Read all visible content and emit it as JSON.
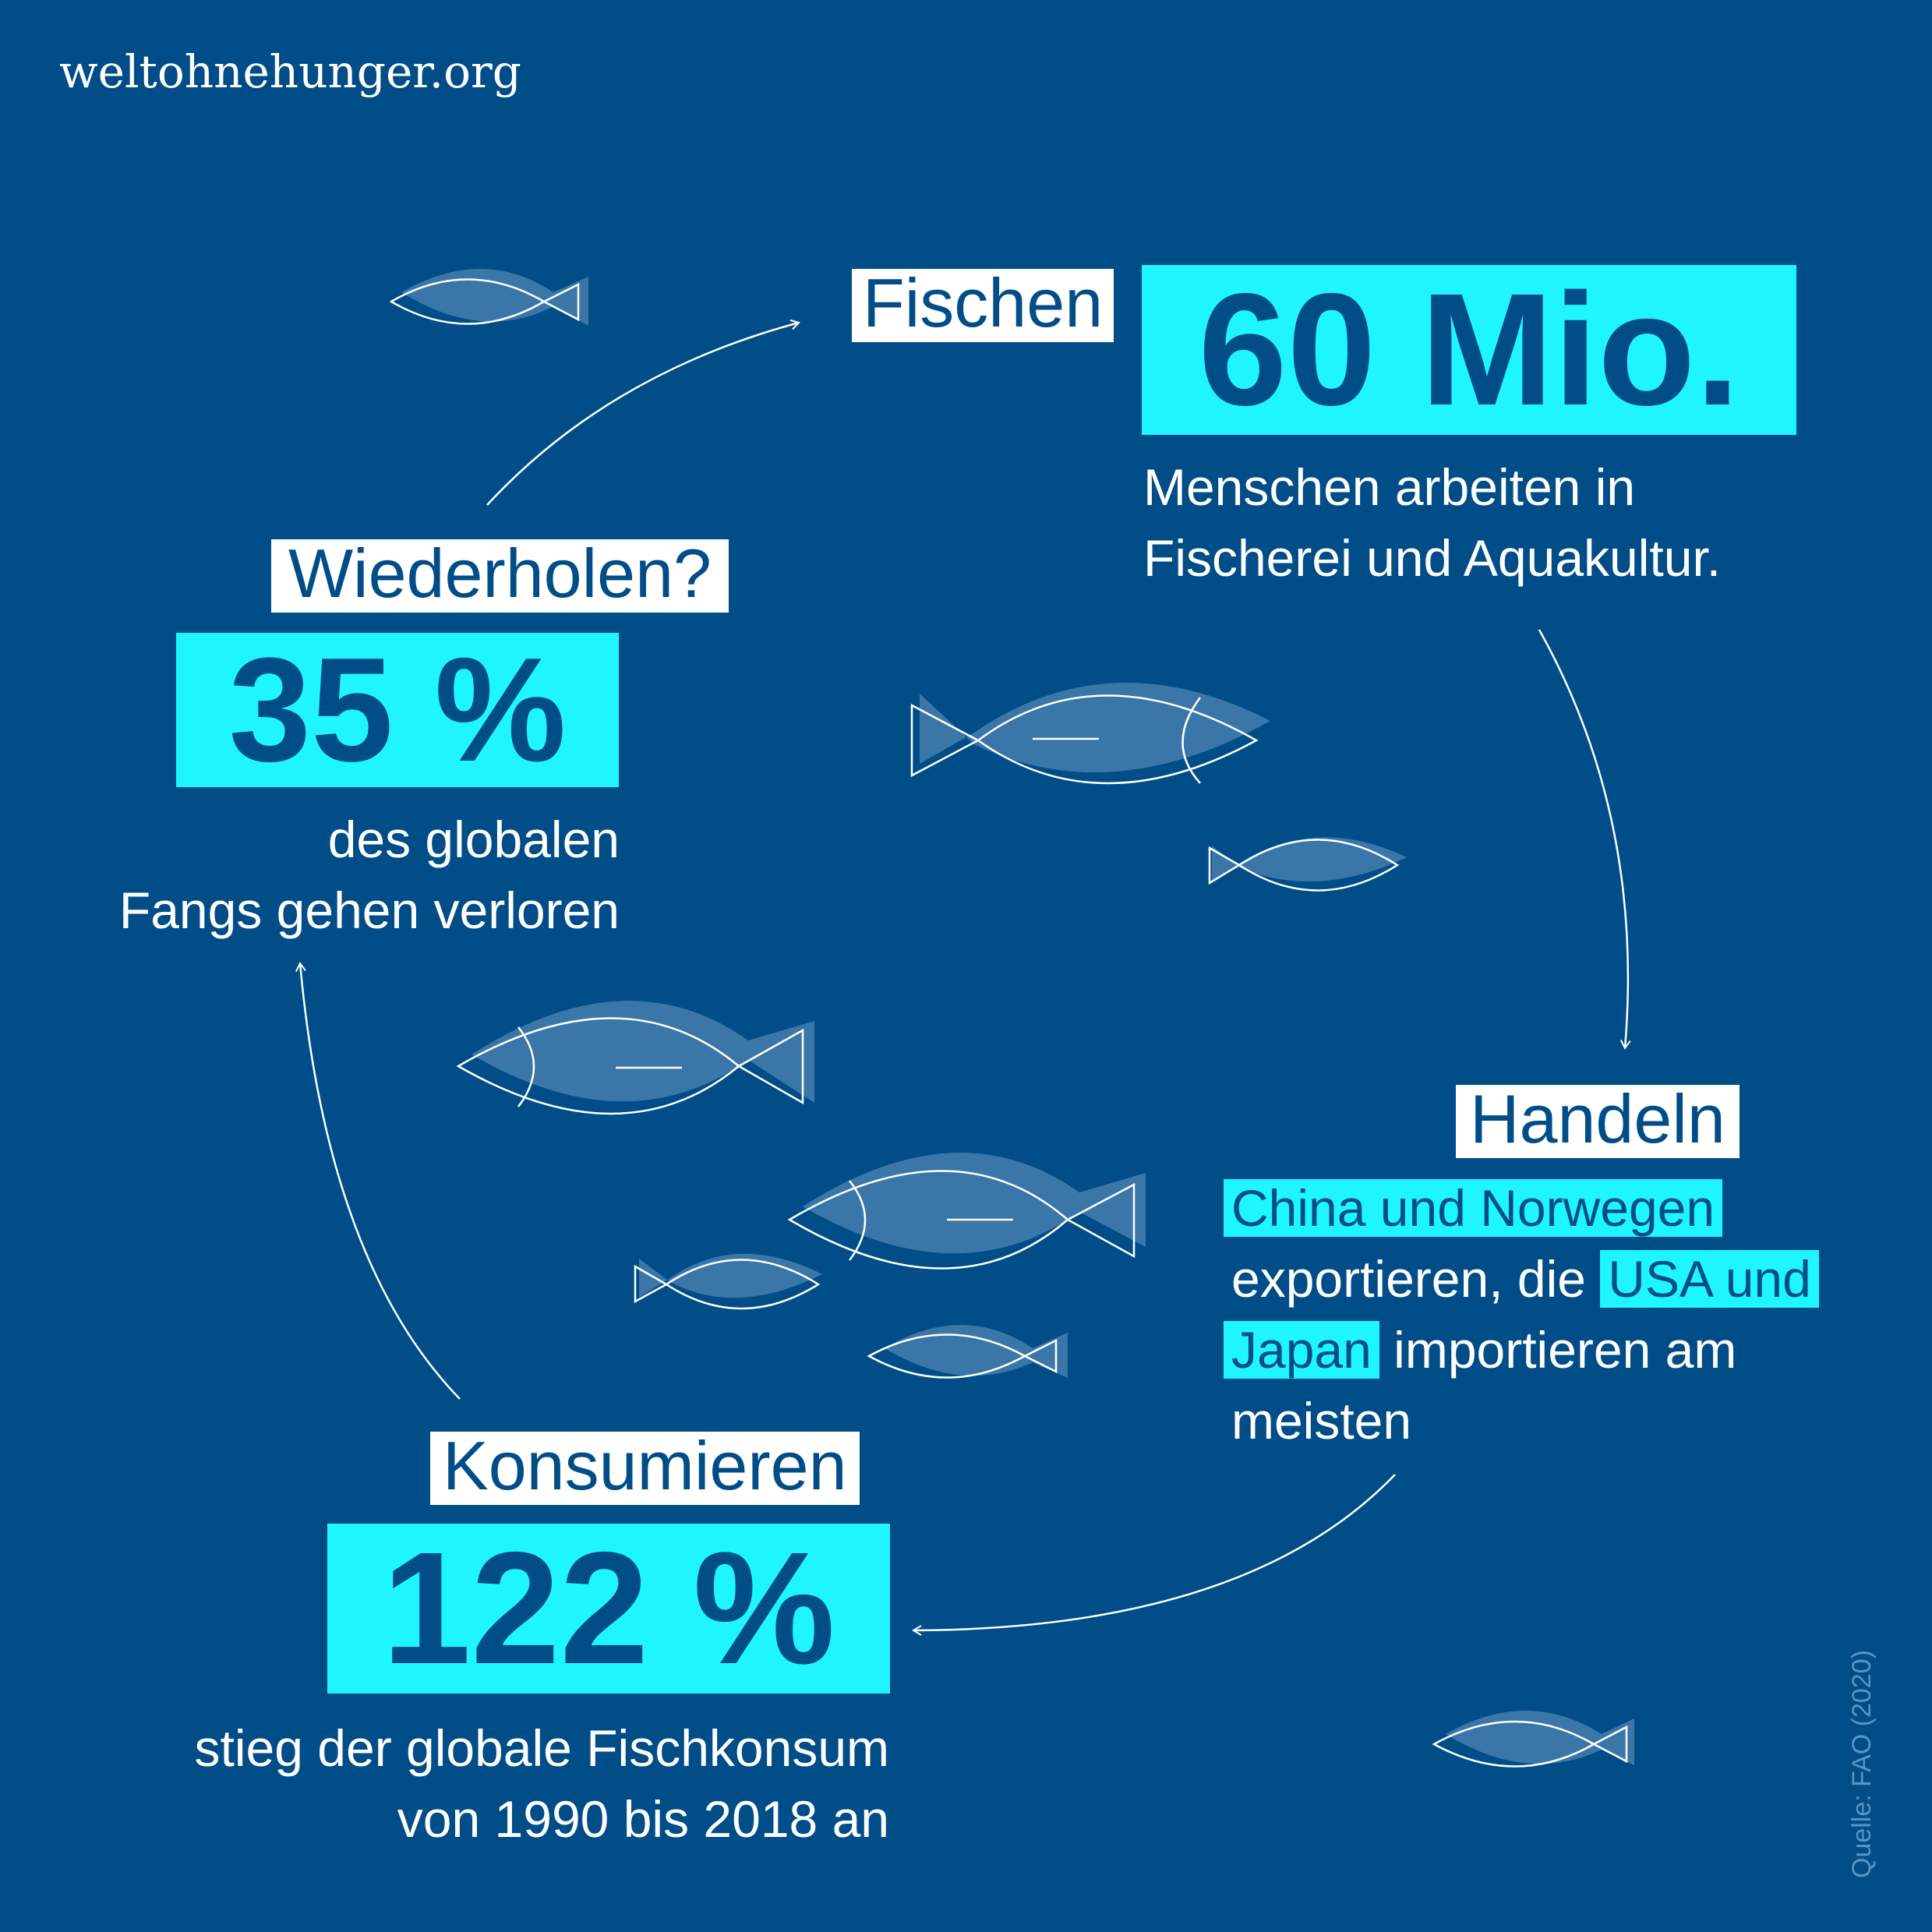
{
  "brand": "weltohnehunger.org",
  "steps": {
    "fischen": {
      "label": "Fischen",
      "value": "60 Mio.",
      "desc_line1": "Menschen arbeiten in",
      "desc_line2": "Fischerei und Aquakultur."
    },
    "handeln": {
      "label": "Handeln",
      "hl1": "China und Norwegen",
      "text1": "exportieren, die",
      "hl2a": "USA und",
      "hl2b": "Japan",
      "text2": "importieren am",
      "text3": "meisten"
    },
    "konsumieren": {
      "label": "Konsumieren",
      "value": "122 %",
      "desc_line1": "stieg der globale Fischkonsum",
      "desc_line2": "von 1990 bis 2018 an"
    },
    "wiederholen": {
      "label": "Wiederholen?",
      "value": "35 %",
      "desc_line1": "des globalen",
      "desc_line2": "Fangs gehen verloren"
    }
  },
  "source": "Quelle: FAO (2020)",
  "colors": {
    "background": "#004d88",
    "highlight": "#1ff5ff",
    "label_bg": "#ffffff",
    "fish_fill": "#3b76a8"
  }
}
